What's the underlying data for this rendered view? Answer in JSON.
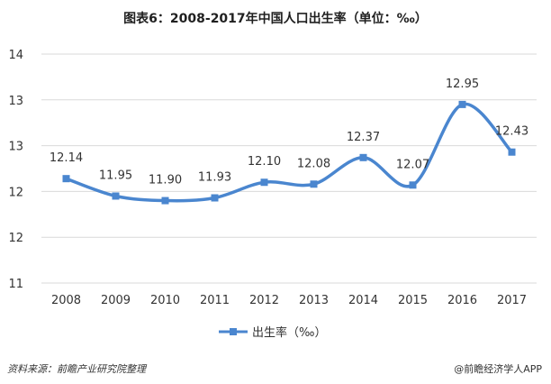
{
  "title": "图表6：2008-2017年中国人口出生率（单位：‰）",
  "source": "资料来源：前瞻产业研究院整理",
  "brand": "@前瞻经济学人APP",
  "chart_data": {
    "type": "line",
    "title": "图表6：2008-2017年中国人口出生率（单位：‰）",
    "x": [
      "2008",
      "2009",
      "2010",
      "2011",
      "2012",
      "2013",
      "2014",
      "2015",
      "2016",
      "2017"
    ],
    "series": [
      {
        "name": "出生率（‰）",
        "values": [
          12.14,
          11.95,
          11.9,
          11.93,
          12.1,
          12.08,
          12.37,
          12.07,
          12.95,
          12.43
        ],
        "labels": [
          "12.14",
          "11.95",
          "11.90",
          "11.93",
          "12.10",
          "12.08",
          "12.37",
          "12.07",
          "12.95",
          "12.43"
        ],
        "color": "#4a86cf"
      }
    ],
    "y_tick_labels": [
      "11",
      "12",
      "12",
      "13",
      "13",
      "14"
    ],
    "ylim": [
      11.0,
      13.5
    ],
    "grid": true,
    "legend": "bottom-center"
  }
}
